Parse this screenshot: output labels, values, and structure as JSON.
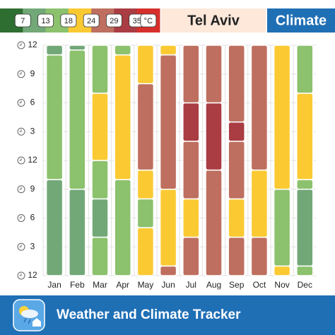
{
  "chart_data": {
    "type": "stacked-range",
    "title": "Tel Aviv",
    "badge": "Climate",
    "legend": {
      "colors": [
        "#2f6e31",
        "#72a878",
        "#8cc16d",
        "#fbca33",
        "#be6f5f",
        "#a93d43",
        "#d7302c"
      ],
      "labels": [
        "7",
        "13",
        "18",
        "24",
        "29",
        "35",
        "°C"
      ]
    },
    "categories": [
      "Jan",
      "Feb",
      "Mar",
      "Apr",
      "May",
      "Jun",
      "Jul",
      "Aug",
      "Sep",
      "Oct",
      "Nov",
      "Dec"
    ],
    "months": [
      {
        "segments": [
          {
            "band": 1,
            "hours": 10
          },
          {
            "band": 2,
            "hours": 13
          },
          {
            "band": 1,
            "hours": 1
          }
        ]
      },
      {
        "segments": [
          {
            "band": 1,
            "hours": 9
          },
          {
            "band": 2,
            "hours": 14.5
          },
          {
            "band": 1,
            "hours": 0.5
          }
        ]
      },
      {
        "segments": [
          {
            "band": 2,
            "hours": 4
          },
          {
            "band": 1,
            "hours": 4
          },
          {
            "band": 2,
            "hours": 4
          },
          {
            "band": 3,
            "hours": 7
          },
          {
            "band": 2,
            "hours": 5
          }
        ]
      },
      {
        "segments": [
          {
            "band": 2,
            "hours": 10
          },
          {
            "band": 3,
            "hours": 13
          },
          {
            "band": 2,
            "hours": 1
          }
        ]
      },
      {
        "segments": [
          {
            "band": 3,
            "hours": 5
          },
          {
            "band": 2,
            "hours": 3
          },
          {
            "band": 3,
            "hours": 3
          },
          {
            "band": 4,
            "hours": 9
          },
          {
            "band": 3,
            "hours": 4
          }
        ]
      },
      {
        "segments": [
          {
            "band": 4,
            "hours": 1
          },
          {
            "band": 3,
            "hours": 8
          },
          {
            "band": 4,
            "hours": 14
          },
          {
            "band": 3,
            "hours": 1
          }
        ]
      },
      {
        "segments": [
          {
            "band": 4,
            "hours": 4
          },
          {
            "band": 3,
            "hours": 4
          },
          {
            "band": 4,
            "hours": 6
          },
          {
            "band": 5,
            "hours": 4
          },
          {
            "band": 4,
            "hours": 6
          }
        ]
      },
      {
        "segments": [
          {
            "band": 4,
            "hours": 11
          },
          {
            "band": 5,
            "hours": 7
          },
          {
            "band": 4,
            "hours": 6
          }
        ]
      },
      {
        "segments": [
          {
            "band": 4,
            "hours": 4
          },
          {
            "band": 3,
            "hours": 4
          },
          {
            "band": 4,
            "hours": 6
          },
          {
            "band": 5,
            "hours": 2
          },
          {
            "band": 4,
            "hours": 8
          }
        ]
      },
      {
        "segments": [
          {
            "band": 4,
            "hours": 4
          },
          {
            "band": 3,
            "hours": 7
          },
          {
            "band": 4,
            "hours": 13
          }
        ]
      },
      {
        "segments": [
          {
            "band": 3,
            "hours": 1
          },
          {
            "band": 2,
            "hours": 8
          },
          {
            "band": 3,
            "hours": 15
          }
        ]
      },
      {
        "segments": [
          {
            "band": 2,
            "hours": 1
          },
          {
            "band": 1,
            "hours": 8
          },
          {
            "band": 2,
            "hours": 1
          },
          {
            "band": 3,
            "hours": 9
          },
          {
            "band": 2,
            "hours": 5
          }
        ]
      }
    ],
    "ylim": [
      0,
      24
    ],
    "yticks": [
      {
        "value": 0,
        "label": "12"
      },
      3,
      6,
      9,
      12,
      {
        "value": 15,
        "label": "3"
      },
      {
        "value": 18,
        "label": "6"
      },
      {
        "value": 21,
        "label": "9"
      },
      {
        "value": 24,
        "label": "12"
      }
    ]
  },
  "footer": {
    "title": "Weather and Climate Tracker"
  }
}
